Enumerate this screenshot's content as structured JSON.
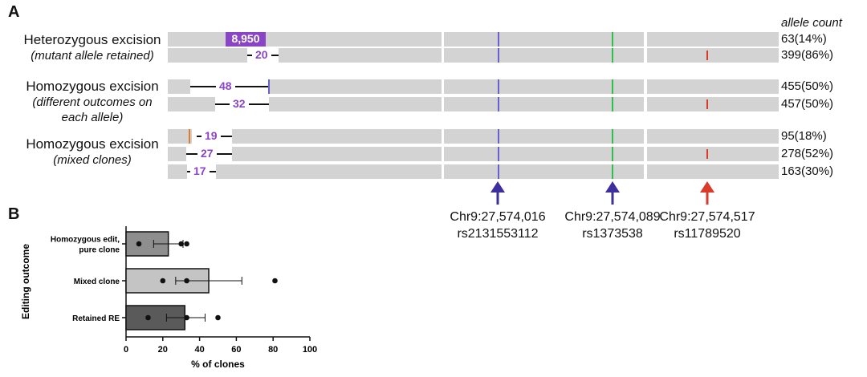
{
  "panel_a": {
    "letter": "A",
    "header": "allele count",
    "groups": [
      {
        "title": "Heterozygous excision",
        "subtitle_lines": [
          "(mutant allele retained)"
        ],
        "rows": [
          {
            "count": "63(14%)",
            "deletion_label": "8,950",
            "boxed": true
          },
          {
            "count": "399(86%)",
            "deletion_label": "20",
            "boxed": false
          }
        ]
      },
      {
        "title": "Homozygous excision",
        "subtitle_lines": [
          "(different outcomes on",
          "each allele)"
        ],
        "rows": [
          {
            "count": "455(50%)",
            "deletion_label": "48",
            "boxed": false
          },
          {
            "count": "457(50%)",
            "deletion_label": "32",
            "boxed": false
          }
        ]
      },
      {
        "title": "Homozygous excision",
        "subtitle_lines": [
          "(mixed clones)"
        ],
        "rows": [
          {
            "count": "95(18%)",
            "deletion_label": "19",
            "boxed": false
          },
          {
            "count": "278(52%)",
            "deletion_label": "27",
            "boxed": false
          },
          {
            "count": "163(30%)",
            "deletion_label": "17",
            "boxed": false
          }
        ]
      }
    ],
    "snps": [
      {
        "position": "Chr9:27,574,016",
        "id": "rs2131553112",
        "color": "#3d2f9e"
      },
      {
        "position": "Chr9:27,574,089",
        "id": "rs1373538",
        "color": "#3d2f9e"
      },
      {
        "position": "Chr9:27,574,517",
        "id": "rs11789520",
        "color": "#d93a2a"
      }
    ],
    "colors": {
      "purple": "#8a45c6",
      "blue_mark": "#6a5fd0",
      "green_mark": "#2fbf4a",
      "red_mark": "#d93a2a",
      "orange_mark": "#e07b2e",
      "bar_gray": "#d3d3d3"
    }
  },
  "panel_b": {
    "letter": "B",
    "chart_data": {
      "type": "bar",
      "orientation": "horizontal",
      "categories": [
        "Homozygous edit,\npure clone",
        "Mixed clone",
        "Retained RE"
      ],
      "values": [
        23,
        45,
        32
      ],
      "error_low": [
        15,
        27,
        22
      ],
      "error_high": [
        31,
        63,
        43
      ],
      "points": [
        [
          7,
          30,
          33
        ],
        [
          20,
          33,
          81
        ],
        [
          12,
          33,
          50
        ]
      ],
      "bar_colors": [
        "#8e8e8e",
        "#c4c4c4",
        "#5a5a5a"
      ],
      "xlabel": "% of clones",
      "ylabel": "Editing outcome",
      "xlim": [
        0,
        100
      ],
      "xticks": [
        0,
        20,
        40,
        60,
        80,
        100
      ],
      "grid": false,
      "legend": "none"
    }
  }
}
